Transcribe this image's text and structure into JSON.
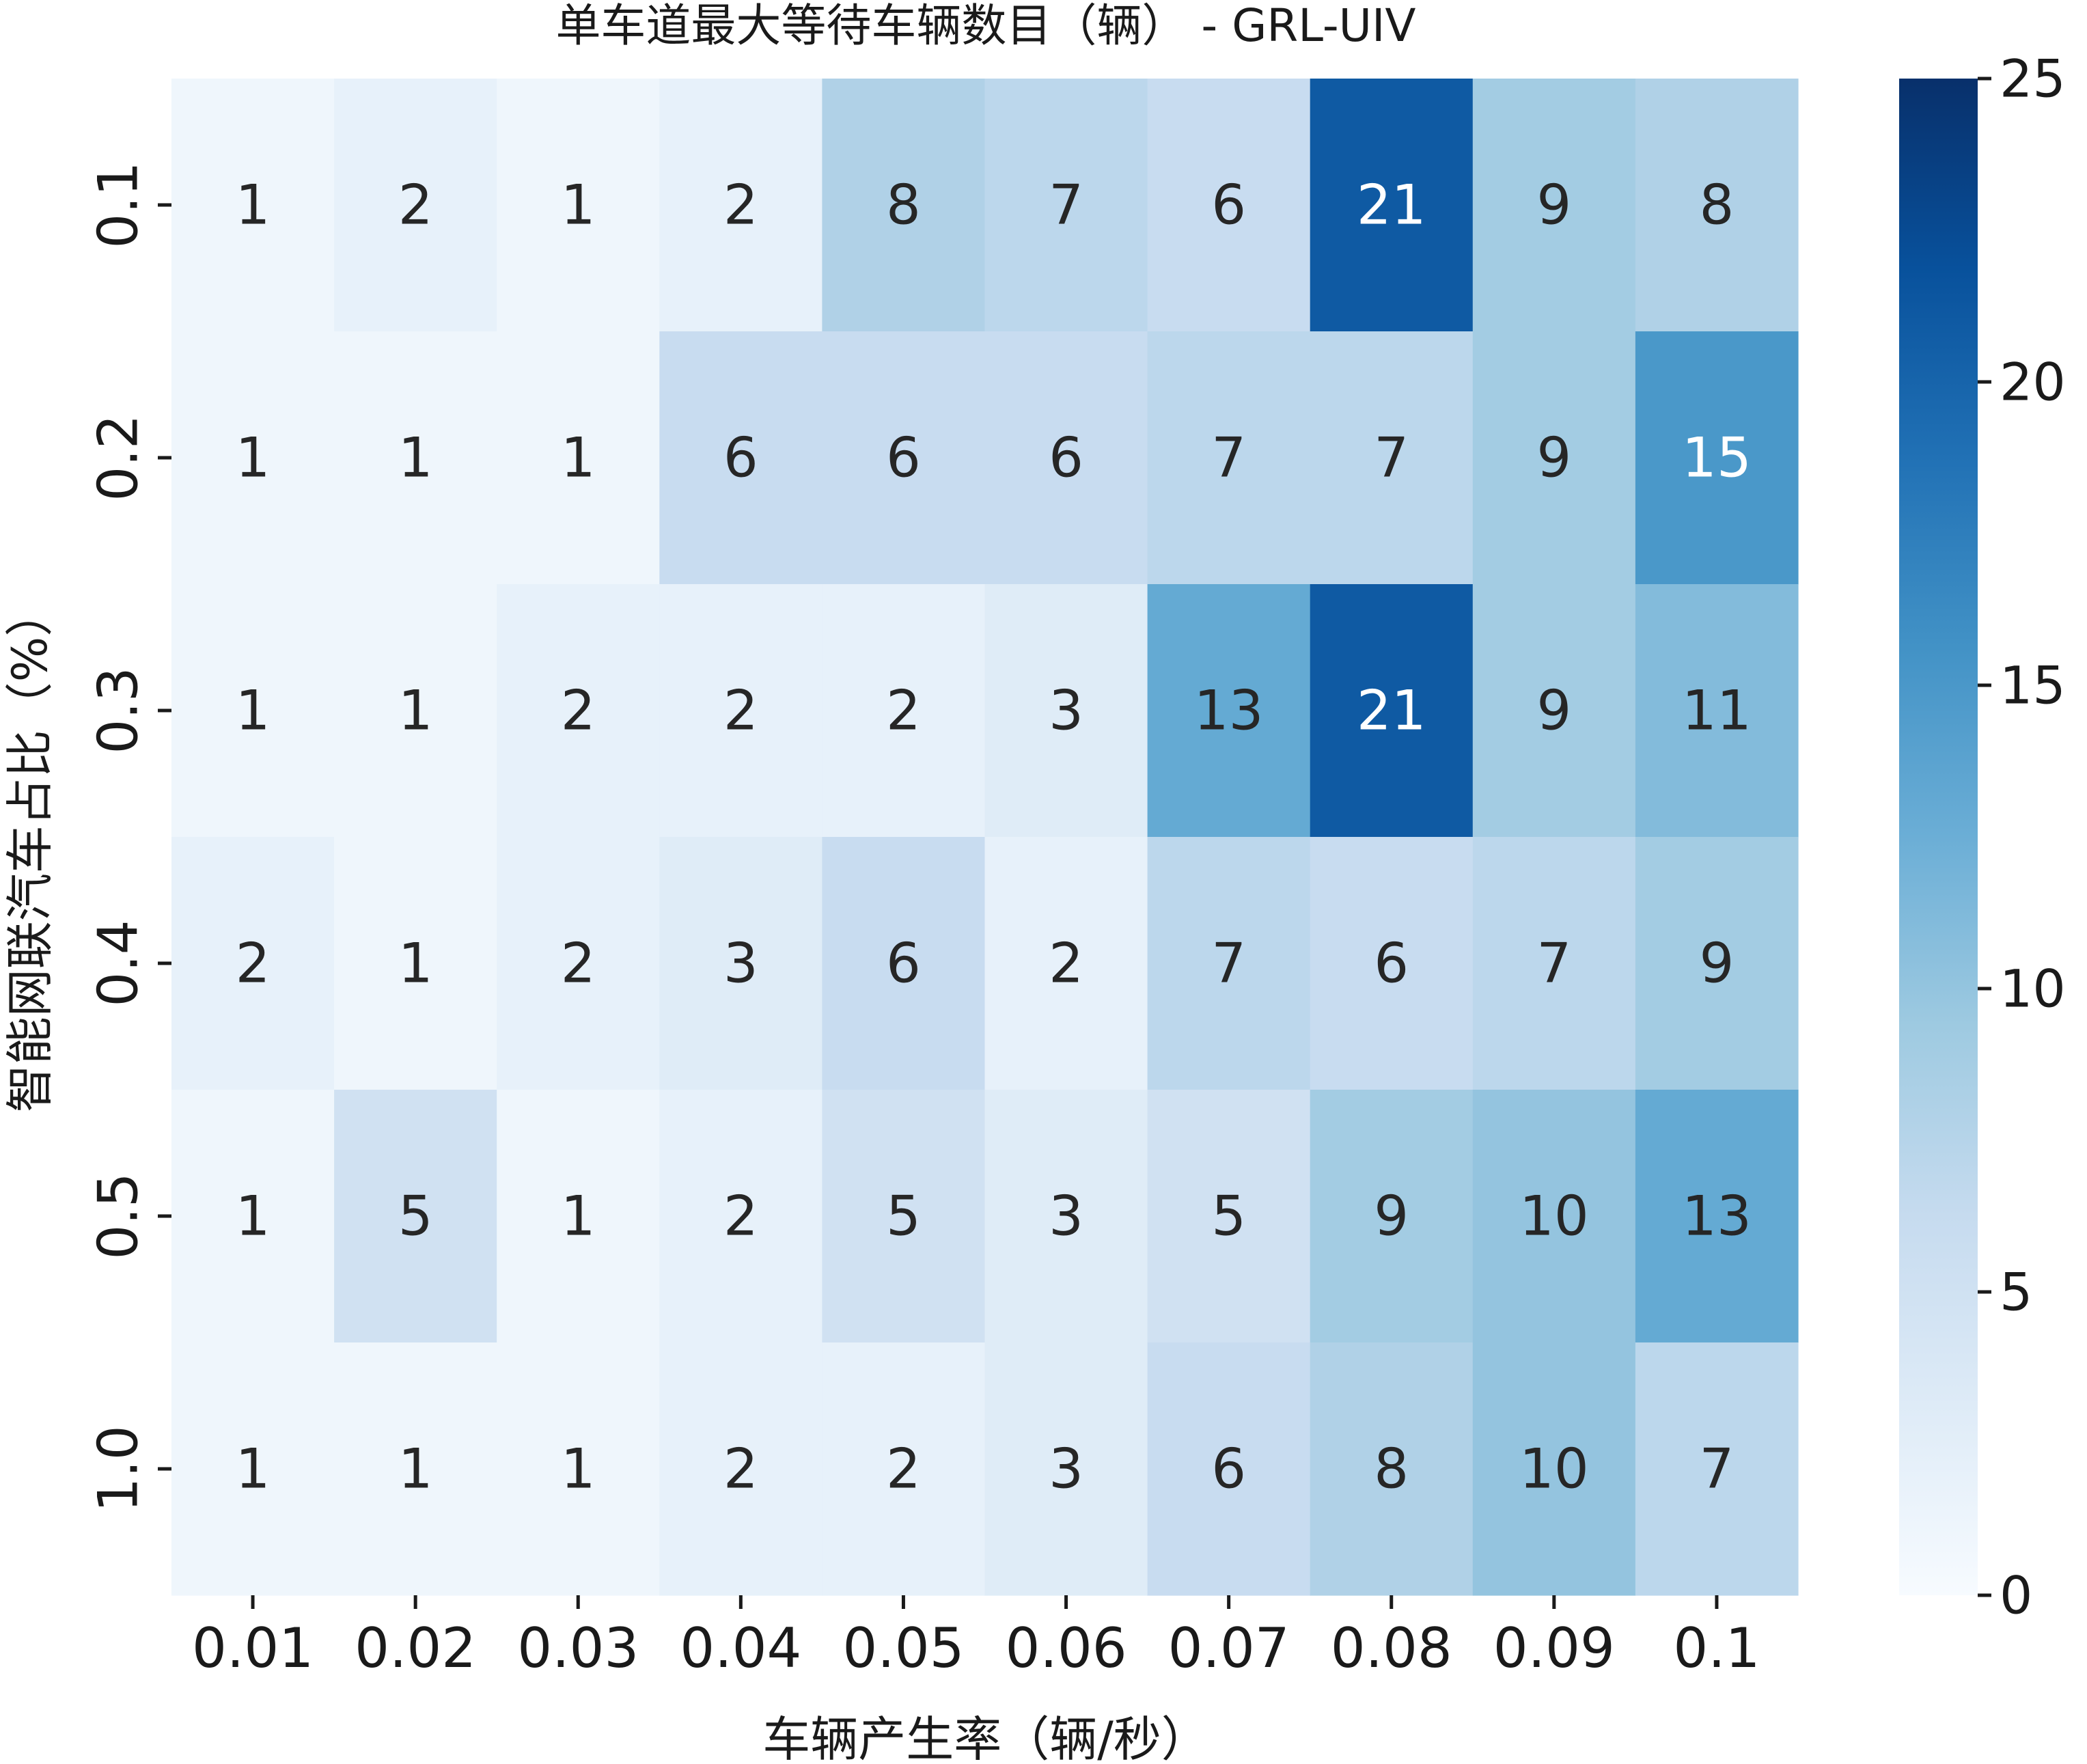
{
  "chart_data": {
    "type": "heatmap",
    "title": "单车道最大等待车辆数目（辆） - GRL-UIV",
    "xlabel": "车辆产生率（辆/秒）",
    "ylabel": "智能网联汽车占比（%）",
    "x_categories": [
      "0.01",
      "0.02",
      "0.03",
      "0.04",
      "0.05",
      "0.06",
      "0.07",
      "0.08",
      "0.09",
      "0.1"
    ],
    "y_categories": [
      "0.1",
      "0.2",
      "0.3",
      "0.4",
      "0.5",
      "1.0"
    ],
    "values": [
      [
        1,
        2,
        1,
        2,
        8,
        7,
        6,
        21,
        9,
        8
      ],
      [
        1,
        1,
        1,
        6,
        6,
        6,
        7,
        7,
        9,
        15
      ],
      [
        1,
        1,
        2,
        2,
        2,
        3,
        13,
        21,
        9,
        11
      ],
      [
        2,
        1,
        2,
        3,
        6,
        2,
        7,
        6,
        7,
        9
      ],
      [
        1,
        5,
        1,
        2,
        5,
        3,
        5,
        9,
        10,
        13
      ],
      [
        1,
        1,
        1,
        2,
        2,
        3,
        6,
        8,
        10,
        7
      ]
    ],
    "colorbar": {
      "range": [
        0,
        25
      ],
      "ticks": [
        "0",
        "5",
        "10",
        "15",
        "20",
        "25"
      ],
      "colormap": "Blues"
    }
  }
}
